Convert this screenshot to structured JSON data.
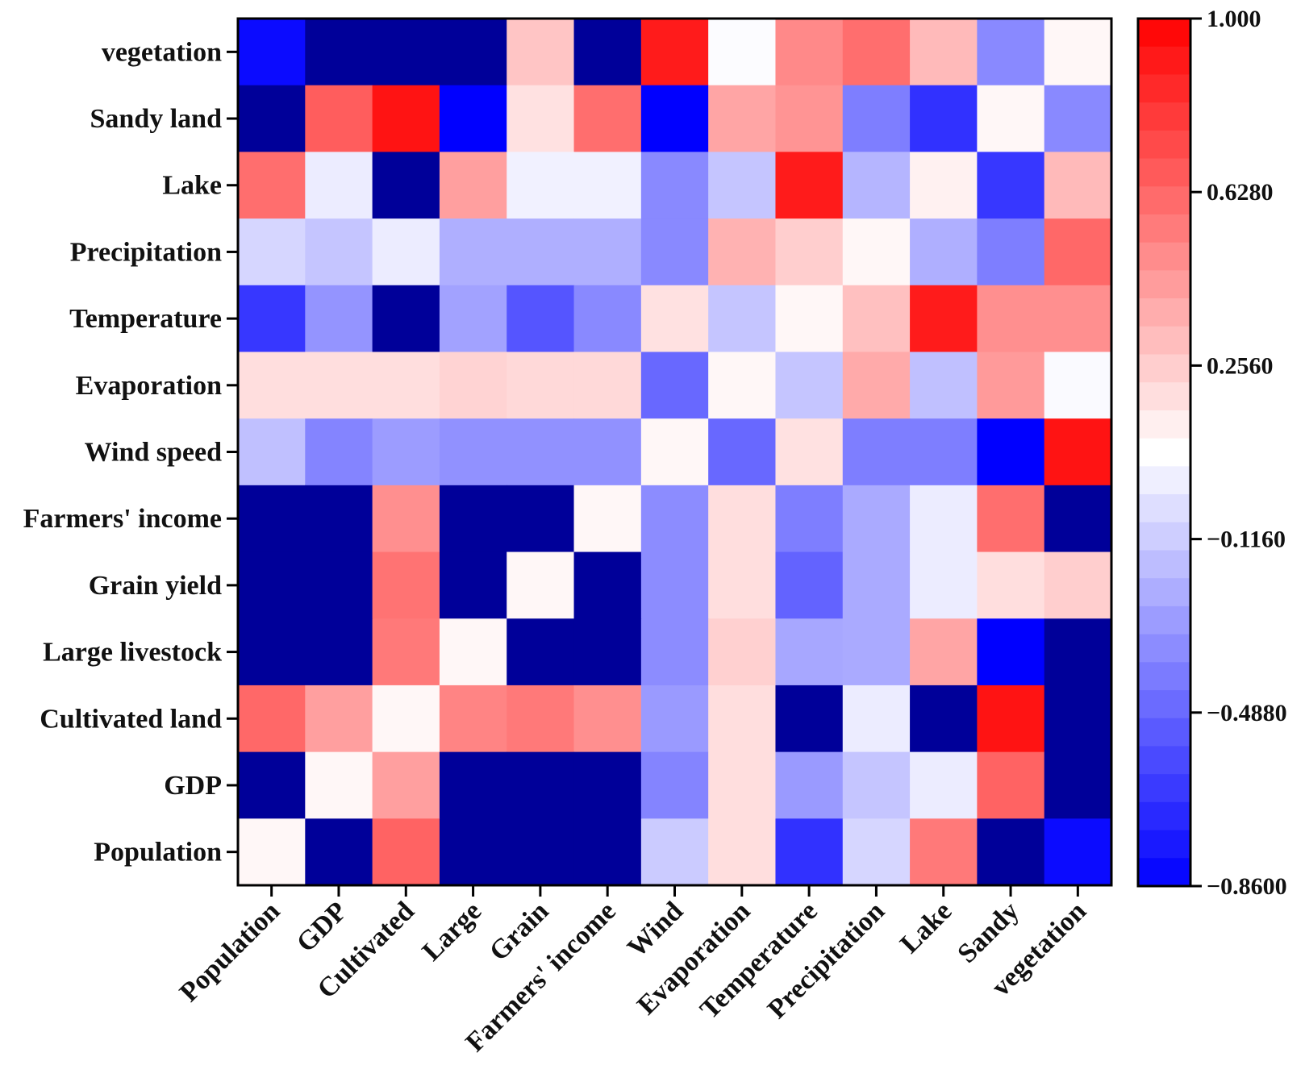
{
  "chart_data": {
    "type": "heatmap",
    "title": "",
    "xlabel": "",
    "ylabel": "",
    "x_categories": [
      "Population",
      "GDP",
      "Cultivated",
      "Large",
      "Grain",
      "Farmers' income",
      "Wind",
      "Evaporation",
      "Temperature",
      "Precipitation",
      "Lake",
      "Sandy",
      "vegetation"
    ],
    "y_categories": [
      "vegetation",
      "Sandy land",
      "Lake",
      "Precipitation",
      "Temperature",
      "Evaporation",
      "Wind speed",
      "Farmers' income",
      "Grain yield",
      "Large livestock",
      "Cultivated land",
      "GDP",
      "Population"
    ],
    "values": [
      [
        -0.82,
        -1.2,
        -1.2,
        -1.2,
        0.28,
        -1.2,
        0.9,
        0.06,
        0.5,
        0.6,
        0.32,
        -0.36,
        0.1
      ],
      [
        -1.2,
        0.66,
        0.93,
        -0.86,
        0.18,
        0.6,
        -0.86,
        0.4,
        0.46,
        -0.4,
        -0.68,
        0.1,
        -0.36
      ],
      [
        0.6,
        0.0,
        -1.2,
        0.42,
        0.02,
        0.02,
        -0.36,
        -0.14,
        0.9,
        -0.2,
        0.12,
        -0.66,
        0.32
      ],
      [
        -0.08,
        -0.14,
        0.0,
        -0.22,
        -0.22,
        -0.22,
        -0.36,
        0.35,
        0.25,
        0.1,
        -0.22,
        -0.4,
        0.62
      ],
      [
        -0.66,
        -0.32,
        -1.2,
        -0.27,
        -0.55,
        -0.36,
        0.18,
        -0.14,
        0.1,
        0.3,
        0.9,
        0.48,
        0.48
      ],
      [
        0.19,
        0.19,
        0.19,
        0.23,
        0.21,
        0.21,
        -0.48,
        0.1,
        -0.14,
        0.38,
        -0.16,
        0.44,
        0.05
      ],
      [
        -0.16,
        -0.38,
        -0.29,
        -0.33,
        -0.33,
        -0.33,
        0.1,
        -0.48,
        0.18,
        -0.4,
        -0.4,
        -0.86,
        0.93
      ],
      [
        -1.2,
        -1.2,
        0.48,
        -1.2,
        -1.2,
        0.1,
        -0.35,
        0.19,
        -0.4,
        -0.24,
        0.0,
        0.6,
        -1.2
      ],
      [
        -1.2,
        -1.2,
        0.58,
        -1.2,
        0.1,
        -1.2,
        -0.35,
        0.19,
        -0.5,
        -0.24,
        0.0,
        0.19,
        0.25
      ],
      [
        -1.2,
        -1.2,
        0.56,
        0.1,
        -1.2,
        -1.2,
        -0.35,
        0.24,
        -0.25,
        -0.24,
        0.4,
        -0.86,
        -1.2
      ],
      [
        0.62,
        0.42,
        0.1,
        0.52,
        0.56,
        0.48,
        -0.3,
        0.19,
        -1.2,
        0.0,
        -1.2,
        0.93,
        -1.2
      ],
      [
        -1.2,
        0.1,
        0.42,
        -1.2,
        -1.2,
        -1.2,
        -0.38,
        0.19,
        -0.3,
        -0.14,
        0.0,
        0.64,
        -1.2
      ],
      [
        0.1,
        -1.2,
        0.64,
        -1.2,
        -1.2,
        -1.2,
        -0.12,
        0.19,
        -0.68,
        -0.08,
        0.56,
        -1.2,
        -0.82
      ]
    ],
    "colorbar": {
      "min": -0.86,
      "max": 1.0,
      "ticks": [
        "1.000",
        "0.6280",
        "0.2560",
        "−0.1160",
        "−0.4880",
        "−0.8600"
      ],
      "tick_values": [
        1.0,
        0.628,
        0.256,
        -0.116,
        -0.488,
        -0.86
      ],
      "bands": 31
    },
    "colors": {
      "low_below_range": "#000099",
      "low": "#0000ff",
      "mid": "#ffffff",
      "high": "#ff0000"
    }
  }
}
